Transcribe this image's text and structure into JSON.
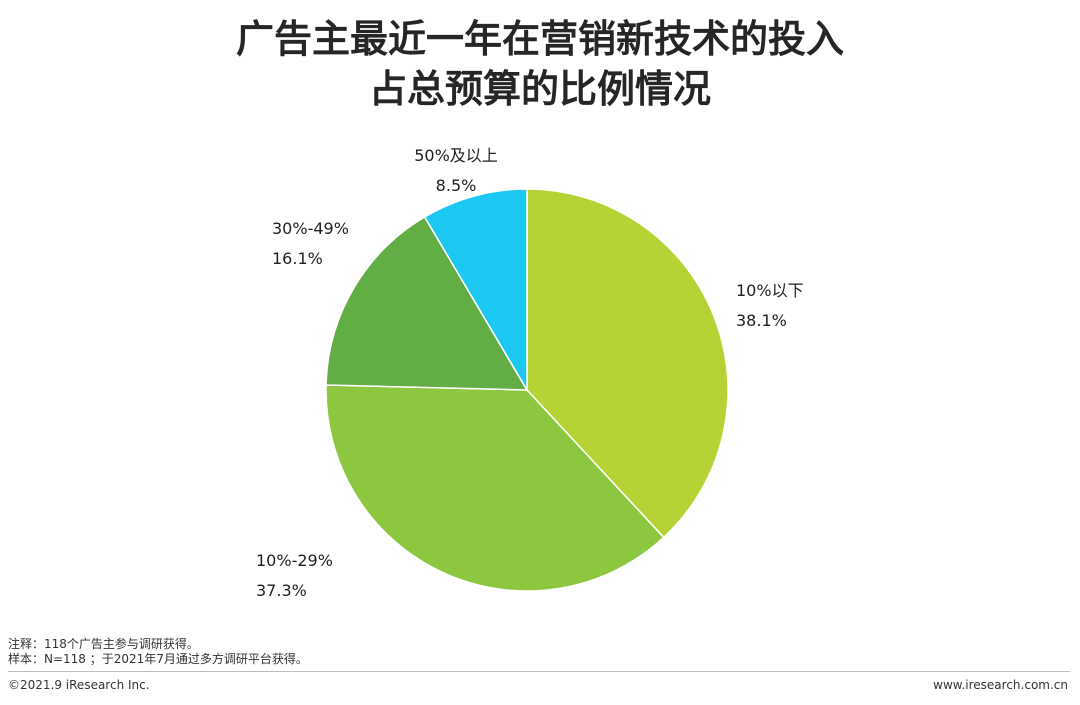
{
  "title_line1": "广告主最近一年在营销新技术的投入",
  "title_line2": "占总预算的比例情况",
  "chart_data": {
    "type": "pie",
    "categories": [
      "10%以下",
      "10%-29%",
      "30%-49%",
      "50%及以上"
    ],
    "values": [
      38.1,
      37.3,
      16.1,
      8.5
    ],
    "value_labels": [
      "38.1%",
      "37.3%",
      "16.1%",
      "8.5%"
    ],
    "colors": [
      "#b5d334",
      "#8dc63f",
      "#63ad45",
      "#1bc8f2"
    ],
    "start": "12 o'clock",
    "direction": "clockwise"
  },
  "notes": {
    "note1": "注释：118个广告主参与调研获得。",
    "note2": "样本：N=118 ；于2021年7月通过多方调研平台获得。"
  },
  "footer": {
    "copyright": "©2021.9 iResearch Inc.",
    "website": "www.iresearch.com.cn"
  }
}
